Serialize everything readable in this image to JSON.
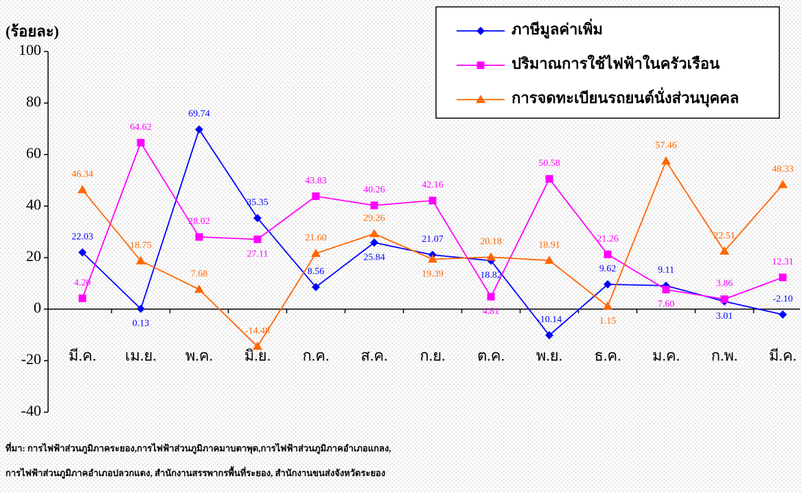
{
  "chart_data": {
    "type": "line",
    "y_label": "(ร้อยละ)",
    "categories": [
      "มี.ค.",
      "เม.ย.",
      "พ.ค.",
      "มิ.ย.",
      "ก.ค.",
      "ส.ค.",
      "ก.ย.",
      "ต.ค.",
      "พ.ย.",
      "ธ.ค.",
      "ม.ค.",
      "ก.พ.",
      "มี.ค."
    ],
    "series": [
      {
        "name": "ภาษีมูลค่าเพิ่ม",
        "color": "#0000ff",
        "marker": "diamond",
        "values": [
          22.03,
          0.13,
          69.74,
          35.35,
          8.56,
          25.84,
          21.07,
          18.82,
          -10.14,
          9.62,
          9.11,
          3.01,
          -2.1
        ],
        "value_labels": [
          "22.03",
          "0.13",
          "69.74",
          "35.35",
          "8.56",
          "25.84",
          "21.07",
          "18.82",
          "-10.14",
          "9.62",
          "9.11",
          "3.01",
          "-2.10"
        ]
      },
      {
        "name": "ปริมาณการใช้ไฟฟ้าในครัวเรือน",
        "color": "#ff00ff",
        "marker": "square",
        "values": [
          4.2,
          64.62,
          28.02,
          27.11,
          43.83,
          40.26,
          42.16,
          4.81,
          50.58,
          21.26,
          7.6,
          3.86,
          12.31
        ],
        "value_labels": [
          "4.20",
          "64.62",
          "28.02",
          "27.11",
          "43.83",
          "40.26",
          "42.16",
          "4.81",
          "50.58",
          "21.26",
          "7.60",
          "3.86",
          "12.31"
        ]
      },
      {
        "name": "การจดทะเบียนรถยนต์นั่งส่วนบุคคล",
        "color": "#ff6600",
        "marker": "triangle",
        "values": [
          46.34,
          18.75,
          7.68,
          -14.48,
          21.6,
          29.26,
          19.39,
          20.18,
          18.91,
          1.15,
          57.46,
          22.51,
          48.33
        ],
        "value_labels": [
          "46.34",
          "18.75",
          "7.68",
          "-14.48",
          "21.60",
          "29.26",
          "19.39",
          "20.18",
          "18.91",
          "1.15",
          "57.46",
          "22.51",
          "48.33"
        ]
      }
    ],
    "ylim": [
      -40,
      100
    ],
    "yticks": [
      -40,
      -20,
      0,
      20,
      40,
      60,
      80,
      100
    ],
    "legend": "upper right",
    "source": [
      "ที่มา: การไฟฟ้าส่วนภูมิภาคระยอง,การไฟฟ้าส่วนภูมิภาคมาบตาพุด,การไฟฟ้าส่วนภูมิภาคอำเภอแกลง,",
      "การไฟฟ้าส่วนภูมิภาคอำเภอปลวกแดง, สำนักงานสรรพากรพื้นที่ระยอง, สำนักงานขนส่งจังหวัดระยอง"
    ]
  }
}
